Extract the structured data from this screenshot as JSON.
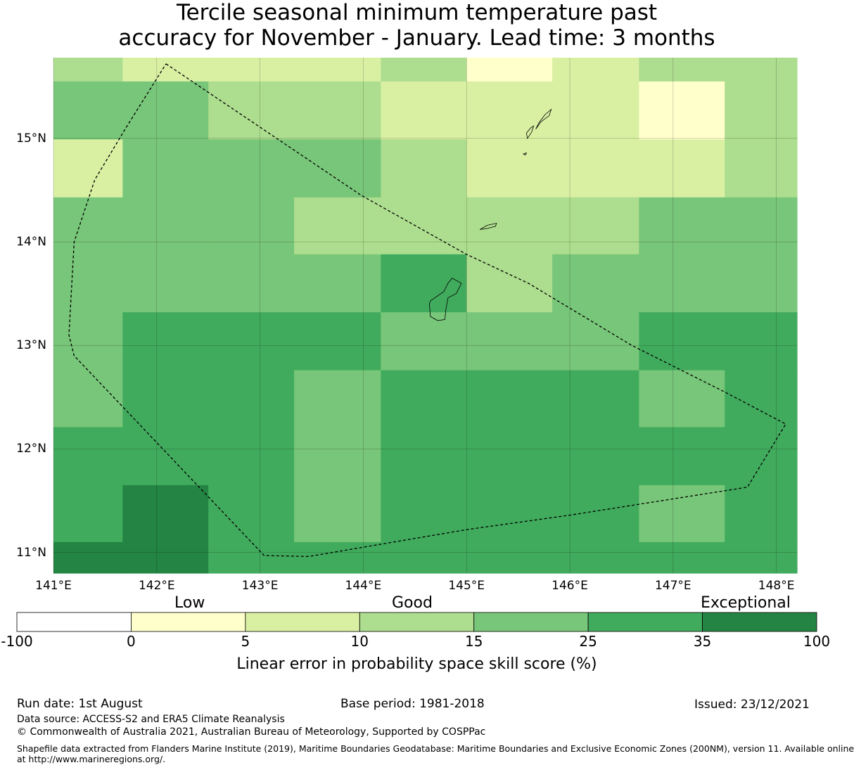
{
  "title_line1": "Tercile seasonal minimum temperature past",
  "title_line2": "accuracy for November - January. Lead time: 3 months",
  "map": {
    "lon_min": 141.0,
    "lon_max": 148.2,
    "lat_min": 10.8,
    "lat_max": 15.78,
    "lon_ticks": [
      141,
      142,
      143,
      144,
      145,
      146,
      147,
      148
    ],
    "lon_tick_labels": [
      "141°E",
      "142°E",
      "143°E",
      "144°E",
      "145°E",
      "146°E",
      "147°E",
      "148°E"
    ],
    "lat_ticks": [
      11,
      12,
      13,
      14,
      15
    ],
    "lat_tick_labels": [
      "11°N",
      "12°N",
      "13°N",
      "14°N",
      "15°N"
    ],
    "grid_lon_edges": [
      141.0,
      141.67,
      142.5,
      143.33,
      144.17,
      145.0,
      145.83,
      146.67,
      147.5,
      148.2
    ],
    "grid_lat_edges": [
      15.78,
      15.55,
      14.99,
      14.43,
      13.88,
      13.32,
      12.76,
      12.21,
      11.65,
      11.1,
      10.8
    ],
    "skill_grid": [
      [
        10,
        5,
        5,
        5,
        10,
        0,
        5,
        10,
        10
      ],
      [
        15,
        15,
        10,
        10,
        5,
        5,
        5,
        0,
        10
      ],
      [
        5,
        15,
        15,
        15,
        10,
        5,
        5,
        5,
        10
      ],
      [
        15,
        15,
        15,
        10,
        10,
        10,
        10,
        15,
        15
      ],
      [
        15,
        15,
        15,
        15,
        25,
        10,
        15,
        15,
        15
      ],
      [
        15,
        25,
        25,
        25,
        15,
        15,
        15,
        25,
        25
      ],
      [
        15,
        25,
        25,
        15,
        25,
        25,
        25,
        15,
        25
      ],
      [
        25,
        25,
        25,
        15,
        25,
        25,
        25,
        25,
        25
      ],
      [
        25,
        35,
        25,
        15,
        25,
        25,
        25,
        15,
        25
      ],
      [
        35,
        35,
        25,
        25,
        25,
        25,
        25,
        25,
        25
      ]
    ],
    "eez_boundary": [
      [
        142.09,
        15.72
      ],
      [
        143.98,
        14.45
      ],
      [
        145.0,
        13.88
      ],
      [
        145.6,
        13.6
      ],
      [
        146.6,
        13.0
      ],
      [
        147.5,
        12.55
      ],
      [
        148.09,
        12.24
      ],
      [
        147.72,
        11.63
      ],
      [
        146.0,
        11.36
      ],
      [
        145.0,
        11.22
      ],
      [
        143.47,
        10.96
      ],
      [
        143.04,
        10.97
      ],
      [
        141.2,
        12.9
      ],
      [
        141.15,
        13.1
      ],
      [
        141.2,
        14.0
      ],
      [
        141.4,
        14.6
      ],
      [
        141.7,
        15.1
      ],
      [
        142.09,
        15.72
      ]
    ],
    "islands": [
      [
        [
          144.65,
          13.43
        ],
        [
          144.78,
          13.52
        ],
        [
          144.82,
          13.6
        ],
        [
          144.86,
          13.65
        ],
        [
          144.95,
          13.6
        ],
        [
          144.9,
          13.5
        ],
        [
          144.82,
          13.46
        ],
        [
          144.8,
          13.35
        ],
        [
          144.79,
          13.25
        ],
        [
          144.72,
          13.24
        ],
        [
          144.65,
          13.28
        ],
        [
          144.64,
          13.4
        ],
        [
          144.65,
          13.43
        ]
      ],
      [
        [
          145.13,
          14.12
        ],
        [
          145.2,
          14.16
        ],
        [
          145.29,
          14.18
        ],
        [
          145.28,
          14.15
        ],
        [
          145.2,
          14.13
        ],
        [
          145.13,
          14.12
        ]
      ],
      [
        [
          145.59,
          15.0
        ],
        [
          145.63,
          15.06
        ],
        [
          145.65,
          15.12
        ],
        [
          145.62,
          15.1
        ],
        [
          145.58,
          15.05
        ],
        [
          145.59,
          15.0
        ]
      ],
      [
        [
          145.67,
          15.09
        ],
        [
          145.7,
          15.15
        ],
        [
          145.76,
          15.23
        ],
        [
          145.82,
          15.28
        ],
        [
          145.8,
          15.22
        ],
        [
          145.72,
          15.16
        ],
        [
          145.67,
          15.09
        ]
      ],
      [
        [
          145.55,
          14.85
        ],
        [
          145.58,
          14.86
        ],
        [
          145.57,
          14.84
        ],
        [
          145.55,
          14.85
        ]
      ]
    ]
  },
  "colorbar": {
    "boundaries": [
      -100,
      0,
      5,
      10,
      15,
      25,
      35,
      100
    ],
    "tick_labels": [
      "-100",
      "0",
      "5",
      "10",
      "15",
      "25",
      "35",
      "100"
    ],
    "colors": [
      "#ffffff",
      "#ffffcc",
      "#d9f0a3",
      "#addd8e",
      "#78c679",
      "#41ab5d",
      "#238443"
    ],
    "category_low": "Low",
    "category_good": "Good",
    "category_exceptional": "Exceptional",
    "label": "Linear error in probability space skill score (%)"
  },
  "footer": {
    "run_date": "Run date: 1st August",
    "base_period": "Base period: 1981-2018",
    "issued": "Issued: 23/12/2021",
    "data_source": "Data source: ACCESS-S2 and ERA5 Climate Reanalysis",
    "copyright": "© Commonwealth of Australia 2021, Australian Bureau of Meteorology, Supported by COSPPac",
    "shapefile_line1": "Shapefile data extracted from Flanders Marine Institute (2019), Maritime Boundaries Geodatabase: Maritime Boundaries and Exclusive Economic Zones (200NM), version 11. Available online",
    "shapefile_line2": "at http://www.marineregions.org/."
  }
}
